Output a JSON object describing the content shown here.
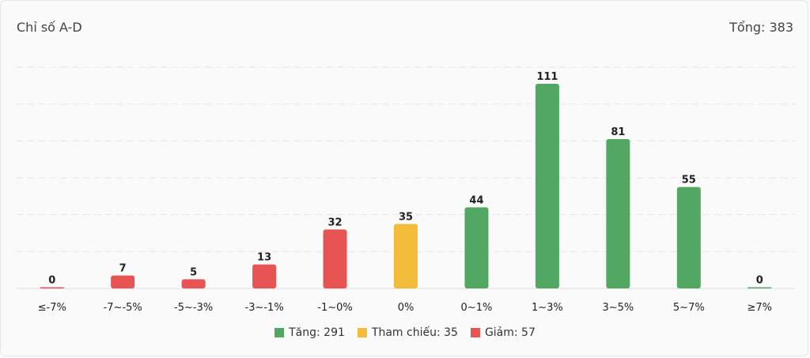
{
  "header": {
    "title": "Chỉ số A-D",
    "total": "Tổng: 383"
  },
  "colors": {
    "up": "#52a862",
    "ref": "#f2bb3a",
    "down": "#e85454"
  },
  "legend": [
    {
      "label": "Tăng: 291",
      "color": "#52a862"
    },
    {
      "label": "Tham chiếu: 35",
      "color": "#f2bb3a"
    },
    {
      "label": "Giảm: 57",
      "color": "#e85454"
    }
  ],
  "chart_data": {
    "type": "bar",
    "title": "Chỉ số A-D",
    "categories": [
      "≤-7%",
      "-7~-5%",
      "-5~-3%",
      "-3~-1%",
      "-1~0%",
      "0%",
      "0~1%",
      "1~3%",
      "3~5%",
      "5~7%",
      "≥7%"
    ],
    "values": [
      0,
      7,
      5,
      13,
      32,
      35,
      44,
      111,
      81,
      55,
      0
    ],
    "bar_colors": [
      "#e85454",
      "#e85454",
      "#e85454",
      "#e85454",
      "#e85454",
      "#f2bb3a",
      "#52a862",
      "#52a862",
      "#52a862",
      "#52a862",
      "#52a862"
    ],
    "ylim": [
      0,
      120
    ],
    "grid": true,
    "legend_position": "bottom"
  }
}
